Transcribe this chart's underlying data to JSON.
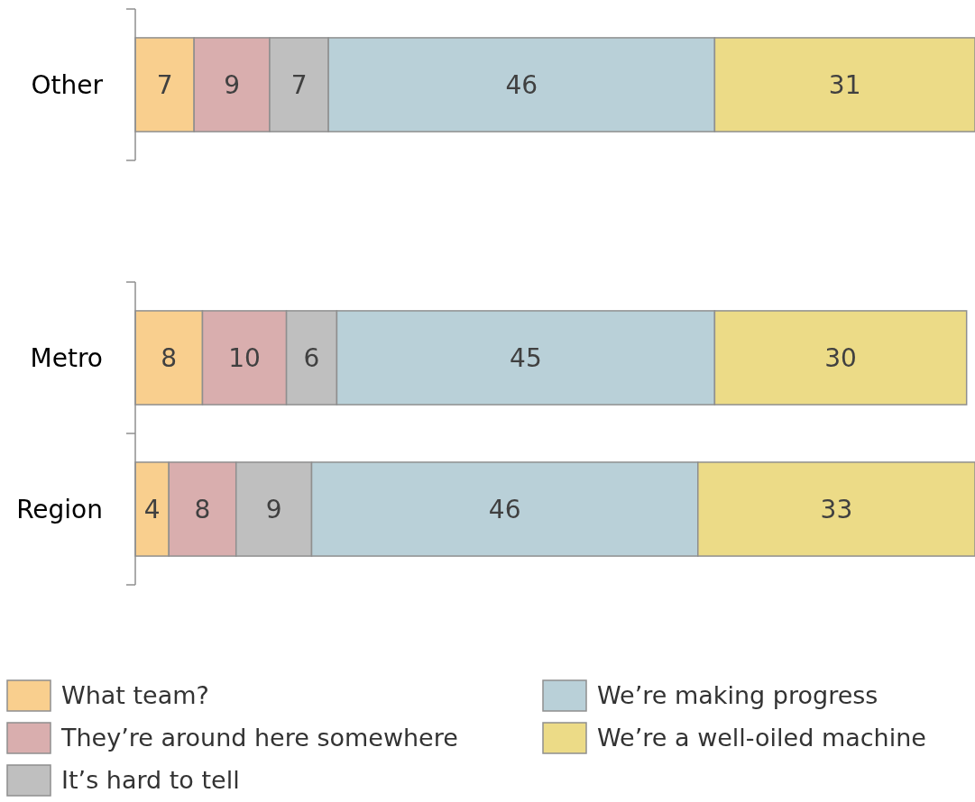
{
  "chart_data": [
    {
      "type": "bar",
      "orientation": "horizontal",
      "stacked": true,
      "categories": [
        "Other"
      ],
      "xlim": [
        0,
        100
      ],
      "tick_labels": "y",
      "data_labels": true,
      "series": [
        {
          "color": "#f9cf8e",
          "values": [
            7
          ]
        },
        {
          "color": "#d9aeae",
          "values": [
            9
          ]
        },
        {
          "color": "#bfbfbf",
          "values": [
            7
          ]
        },
        {
          "color": "#b9d0d8",
          "values": [
            46
          ]
        },
        {
          "color": "#ecdb87",
          "values": [
            31
          ]
        }
      ]
    },
    {
      "type": "bar",
      "orientation": "horizontal",
      "stacked": true,
      "categories": [
        "Metro",
        "Region"
      ],
      "xlim": [
        0,
        100
      ],
      "tick_labels": "y",
      "data_labels": true,
      "legend": "bottom",
      "series": [
        {
          "name": "What team?",
          "color": "#f9cf8e",
          "values": [
            8,
            4
          ]
        },
        {
          "name": "They’re around here somewhere",
          "color": "#d9aeae",
          "values": [
            10,
            8
          ]
        },
        {
          "name": "It’s hard to tell",
          "color": "#bfbfbf",
          "values": [
            6,
            9
          ]
        },
        {
          "name": "We’re making progress",
          "color": "#b9d0d8",
          "values": [
            45,
            46
          ]
        },
        {
          "name": "We’re a well-oiled machine",
          "color": "#ecdb87",
          "values": [
            30,
            33
          ]
        }
      ]
    }
  ]
}
